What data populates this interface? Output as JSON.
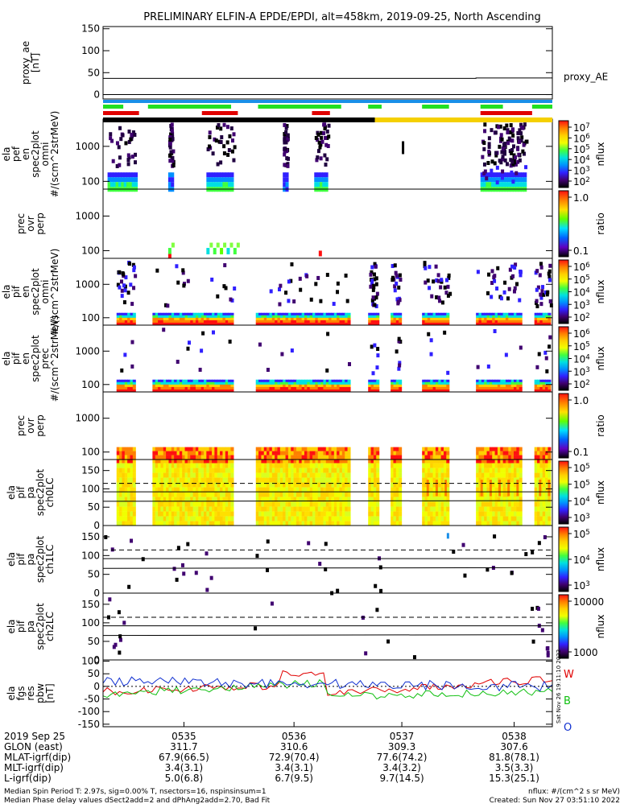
{
  "header": {
    "title": "PRELIMINARY ELFIN-A EPDE/EPDI, alt=458km, 2019-09-25, North Ascending"
  },
  "colors": {
    "bar_blue": "#1a8fe8",
    "bar_green": "#22e022",
    "bar_red": "#e00000",
    "bar_black": "#000000",
    "bar_yellow": "#f5d000",
    "line_w": "#e00000",
    "line_b": "#10c010",
    "line_o": "#1030d0"
  },
  "chart_data": [
    {
      "type": "line",
      "id": "proxy_ae",
      "ylabel_lines": [
        "proxy_ae",
        "[nT]"
      ],
      "yticks": [
        0,
        50,
        100,
        150
      ],
      "ylim": [
        -10,
        155
      ],
      "series": [
        {
          "name": "proxy_AE",
          "x": [
            0,
            0.83,
            0.83,
            1
          ],
          "values": [
            37,
            37,
            38,
            38
          ]
        }
      ]
    },
    {
      "type": "heatmap",
      "id": "ela_pef_en_omni",
      "ylabel_lines": [
        "ela",
        "pef",
        "en",
        "spec2plot",
        "omni",
        "#/(scm^2strMeV)"
      ],
      "yticks": [
        100,
        1000
      ],
      "colorbar": {
        "label": "nflux",
        "ticks": [
          "10^7",
          "10^6",
          "10^5",
          "10^4",
          "10^3",
          "10^2"
        ]
      }
    },
    {
      "type": "heatmap",
      "id": "prec_ovr_perp_e",
      "ylabel_lines": [
        "prec",
        "ovr",
        "perp"
      ],
      "yticks": [
        100,
        1000
      ],
      "colorbar": {
        "label": "ratio",
        "ticks": [
          "1.0",
          "0.1"
        ]
      }
    },
    {
      "type": "heatmap",
      "id": "ela_pif_en_omni",
      "ylabel_lines": [
        "ela",
        "pif",
        "en",
        "spec2plot",
        "omni",
        "#/(scm^2strMeV)"
      ],
      "yticks": [
        100,
        1000
      ],
      "colorbar": {
        "label": "nflux",
        "ticks": [
          "10^6",
          "10^5",
          "10^4",
          "10^3",
          "10^2"
        ]
      }
    },
    {
      "type": "heatmap",
      "id": "ela_pif_en_prec",
      "ylabel_lines": [
        "ela",
        "pif",
        "en",
        "spec2plot",
        "prec",
        "#/(scm^2strMeV)"
      ],
      "yticks": [
        100,
        1000
      ],
      "colorbar": {
        "label": "nflux",
        "ticks": [
          "10^6",
          "10^5",
          "10^4",
          "10^3",
          "10^2"
        ]
      }
    },
    {
      "type": "heatmap",
      "id": "prec_ovr_perp_i",
      "ylabel_lines": [
        "prec",
        "ovr",
        "perp"
      ],
      "yticks": [
        100,
        1000
      ],
      "colorbar": {
        "label": "ratio",
        "ticks": [
          "1.0",
          "0.1"
        ]
      }
    },
    {
      "type": "heatmap",
      "id": "ela_pif_pa_ch0",
      "ylabel_lines": [
        "ela",
        "pif",
        "pa",
        "spec2plot",
        "ch0LC"
      ],
      "yticks": [
        0,
        50,
        100,
        150
      ],
      "colorbar": {
        "label": "nflux",
        "ticks": [
          "10^5",
          "10^5",
          "10^4",
          "10^3"
        ]
      }
    },
    {
      "type": "heatmap",
      "id": "ela_pif_pa_ch1",
      "ylabel_lines": [
        "ela",
        "pif",
        "pa",
        "spec2plot",
        "ch1LC"
      ],
      "yticks": [
        0,
        50,
        100,
        150
      ],
      "colorbar": {
        "label": "nflux",
        "ticks": [
          "10^5",
          "10^4",
          "10^3"
        ]
      }
    },
    {
      "type": "heatmap",
      "id": "ela_pif_pa_ch2",
      "ylabel_lines": [
        "ela",
        "pif",
        "pa",
        "spec2plot",
        "ch2LC"
      ],
      "yticks": [
        0,
        50,
        100,
        150
      ],
      "colorbar": {
        "label": "nflux",
        "ticks": [
          "10000",
          "1000"
        ]
      }
    },
    {
      "type": "line",
      "id": "ela_fgs_res_pbw",
      "ylabel_lines": [
        "ela",
        "fgs",
        "res",
        "pbw",
        "[nT]"
      ],
      "yticks": [
        -150,
        -100,
        -50,
        0,
        50,
        100
      ],
      "ylim": [
        -160,
        105
      ],
      "legend": [
        "W",
        "B",
        "O"
      ],
      "side_text": "Sat Nov 26 19:11:10 2022"
    }
  ],
  "time_axis": {
    "date": "2019 Sep 25",
    "rows": [
      {
        "label": "GLON (east)",
        "values": [
          "311.7",
          "310.6",
          "309.3",
          "307.6"
        ]
      },
      {
        "label": "MLAT-igrf(dip)",
        "values": [
          "67.9(66.5)",
          "72.9(70.4)",
          "77.6(74.2)",
          "81.8(78.1)"
        ]
      },
      {
        "label": "MLT-igrf(dip)",
        "values": [
          "3.4(3.1)",
          "3.4(3.1)",
          "3.4(3.2)",
          "3.5(3.3)"
        ]
      },
      {
        "label": "L-igrf(dip)",
        "values": [
          "5.0(6.8)",
          "6.7(9.5)",
          "9.7(14.5)",
          "15.3(25.1)"
        ]
      }
    ],
    "ticks": [
      "0535",
      "0536",
      "0537",
      "0538"
    ]
  },
  "footer": {
    "line1_left": "Median Spin Period T: 2.97s, sig=0.00% T, nsectors=16, nspinsinsum=1",
    "line2_left": "Median Phase delay values dSect2add=2 and dPhAng2add=2.70, Bad Fit",
    "line1_right": "nflux: #/(cm^2 s sr MeV)",
    "line2_right": "Created: Sun Nov 27 03:51:10 2022"
  }
}
